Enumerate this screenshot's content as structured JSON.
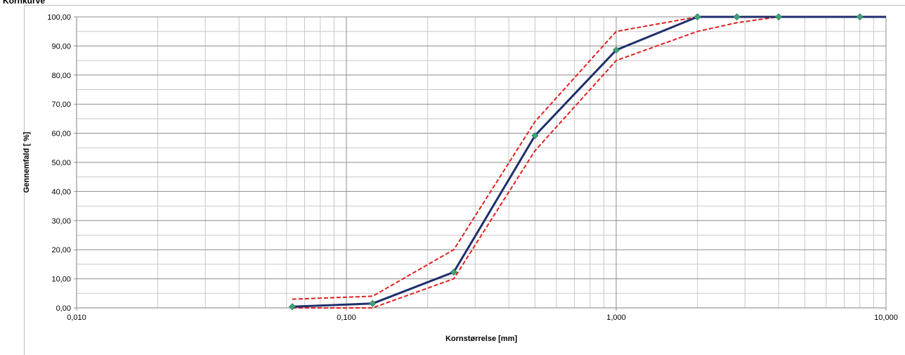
{
  "title": "Kornkurve",
  "chart_data": {
    "type": "line",
    "title": "Kornkurve",
    "xlabel": "Kornstørrelse [mm]",
    "ylabel": "Gennemfald [ %]",
    "x_scale": "log",
    "xlim": [
      0.01,
      10
    ],
    "ylim": [
      0,
      100
    ],
    "x_tick_labels": [
      "0,010",
      "0,100",
      "1,000",
      "10,000"
    ],
    "y_tick_labels": [
      "0,00",
      "10,00",
      "20,00",
      "30,00",
      "40,00",
      "50,00",
      "60,00",
      "70,00",
      "80,00",
      "90,00",
      "100,00"
    ],
    "grid": true,
    "series": [
      {
        "role": "main",
        "color": "#1f2f6b",
        "marker": "diamond",
        "marker_color": "#3fa37a",
        "x": [
          0.063,
          0.125,
          0.25,
          0.5,
          1,
          2,
          2.8,
          4,
          8,
          10
        ],
        "y": [
          0.4,
          1.5,
          12.3,
          59.2,
          88.6,
          100,
          100,
          100,
          100,
          100
        ],
        "markers_at": [
          0.063,
          0.125,
          0.25,
          0.5,
          1,
          2,
          2.8,
          4,
          8
        ]
      },
      {
        "role": "upper-limit",
        "color": "#e02020",
        "dashed": true,
        "x": [
          0.063,
          0.125,
          0.25,
          0.5,
          1,
          2,
          2.8,
          4
        ],
        "y": [
          3,
          4,
          20,
          64,
          95,
          100,
          100,
          100
        ]
      },
      {
        "role": "lower-limit",
        "color": "#e02020",
        "dashed": true,
        "x": [
          0.063,
          0.125,
          0.25,
          0.5,
          1,
          2,
          2.8,
          4
        ],
        "y": [
          0,
          0,
          10,
          54,
          85,
          95,
          98,
          100
        ]
      }
    ]
  }
}
